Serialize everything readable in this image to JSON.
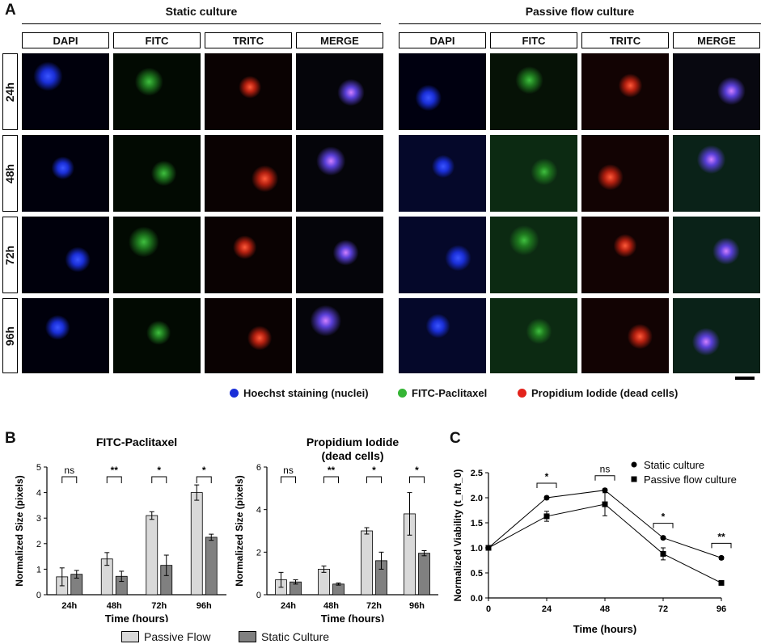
{
  "panelA": {
    "letter": "A",
    "groups": [
      "Static culture",
      "Passive flow culture"
    ],
    "channels": [
      "DAPI",
      "FITC",
      "TRITC",
      "MERGE"
    ],
    "timepoints": [
      "24h",
      "48h",
      "72h",
      "96h"
    ],
    "legend": [
      {
        "label": "Hoechst staining (nuclei)",
        "color": "#1a2fd8"
      },
      {
        "label": "FITC-Paclitaxel",
        "color": "#35b535"
      },
      {
        "label": "Propidium Iodide (dead cells)",
        "color": "#e3231c"
      }
    ]
  },
  "panelB_letter": "B",
  "panelC_letter": "C",
  "bottom_legend": [
    {
      "label": "Passive Flow",
      "color": "#d9d9d9"
    },
    {
      "label": "Static Culture",
      "color": "#808080"
    }
  ],
  "chart_data": [
    {
      "type": "bar",
      "title": "FITC-Paclitaxel",
      "xlabel": "Time (hours)",
      "ylabel": "Normalized Size (pixels)",
      "categories": [
        "24h",
        "48h",
        "72h",
        "96h"
      ],
      "ylim": [
        0,
        5
      ],
      "yticks": [
        0,
        1,
        2,
        3,
        4,
        5
      ],
      "series": [
        {
          "name": "Passive Flow",
          "values": [
            0.7,
            1.4,
            3.1,
            4.0
          ],
          "errors": [
            0.35,
            0.25,
            0.15,
            0.3
          ],
          "color": "#d9d9d9"
        },
        {
          "name": "Static Culture",
          "values": [
            0.8,
            0.72,
            1.15,
            2.25
          ],
          "errors": [
            0.15,
            0.2,
            0.4,
            0.12
          ],
          "color": "#808080"
        }
      ],
      "significance": [
        "ns",
        "**",
        "*",
        "*"
      ]
    },
    {
      "type": "bar",
      "title": "Propidium Iodide",
      "subtitle": "(dead cells)",
      "xlabel": "Time (hours)",
      "ylabel": "Normalized Size (pixels)",
      "categories": [
        "24h",
        "48h",
        "72h",
        "96h"
      ],
      "ylim": [
        0,
        6
      ],
      "yticks": [
        0,
        2,
        4,
        6
      ],
      "series": [
        {
          "name": "Passive Flow",
          "values": [
            0.7,
            1.2,
            3.0,
            3.8
          ],
          "errors": [
            0.35,
            0.15,
            0.15,
            1.0
          ],
          "color": "#d9d9d9"
        },
        {
          "name": "Static Culture",
          "values": [
            0.6,
            0.5,
            1.6,
            1.95
          ],
          "errors": [
            0.1,
            0.05,
            0.4,
            0.12
          ],
          "color": "#808080"
        }
      ],
      "significance": [
        "ns",
        "**",
        "*",
        "*"
      ]
    },
    {
      "type": "line",
      "title": "",
      "xlabel": "Time (hours)",
      "ylabel": "Normalized Viability (t_n/t_0)",
      "x": [
        0,
        24,
        48,
        72,
        96
      ],
      "xlim": [
        0,
        96
      ],
      "ylim": [
        0,
        2.5
      ],
      "xticks": [
        0,
        24,
        48,
        72,
        96
      ],
      "yticks": [
        0.0,
        0.5,
        1.0,
        1.5,
        2.0,
        2.5
      ],
      "series": [
        {
          "name": "Static culture",
          "marker": "circle",
          "values": [
            1.0,
            2.0,
            2.15,
            1.2,
            0.8
          ],
          "errors": [
            0,
            0.03,
            0.03,
            0.03,
            0.03
          ]
        },
        {
          "name": "Passive flow culture",
          "marker": "square",
          "values": [
            1.0,
            1.63,
            1.87,
            0.88,
            0.3
          ],
          "errors": [
            0,
            0.1,
            0.23,
            0.12,
            0.03
          ]
        }
      ],
      "significance": [
        {
          "x": 24,
          "label": "*"
        },
        {
          "x": 48,
          "label": "ns"
        },
        {
          "x": 72,
          "label": "*"
        },
        {
          "x": 96,
          "label": "**"
        }
      ]
    }
  ]
}
